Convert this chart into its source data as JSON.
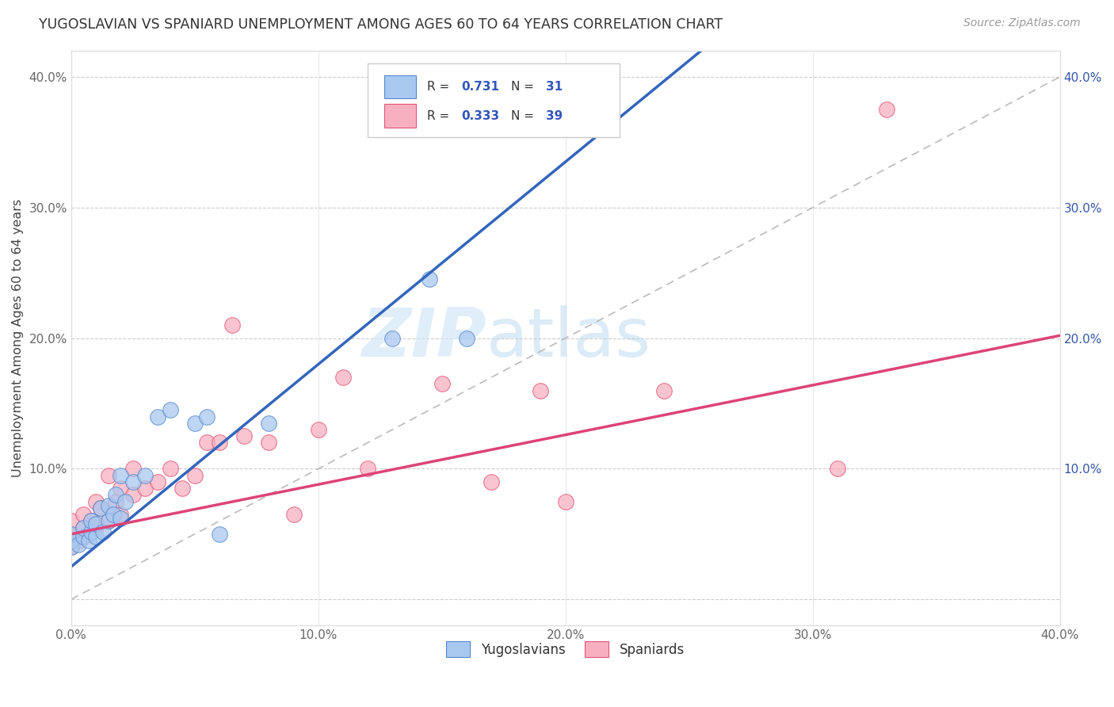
{
  "title": "YUGOSLAVIAN VS SPANIARD UNEMPLOYMENT AMONG AGES 60 TO 64 YEARS CORRELATION CHART",
  "source": "Source: ZipAtlas.com",
  "ylabel": "Unemployment Among Ages 60 to 64 years",
  "xlim": [
    0.0,
    0.4
  ],
  "ylim": [
    -0.02,
    0.42
  ],
  "x_ticks": [
    0.0,
    0.1,
    0.2,
    0.3,
    0.4
  ],
  "x_tick_labels": [
    "0.0%",
    "10.0%",
    "20.0%",
    "30.0%",
    "40.0%"
  ],
  "y_ticks": [
    0.0,
    0.1,
    0.2,
    0.3,
    0.4
  ],
  "y_tick_labels": [
    "",
    "10.0%",
    "20.0%",
    "30.0%",
    "40.0%"
  ],
  "legend_labels": [
    "Yugoslavians",
    "Spaniards"
  ],
  "blue_scatter_color": "#a8c8f0",
  "blue_edge_color": "#5588cc",
  "pink_scatter_color": "#f8b0c0",
  "pink_edge_color": "#e05575",
  "blue_line_color": "#3366bb",
  "pink_line_color": "#dd4477",
  "diag_color": "#bbbbbb",
  "background_color": "#ffffff",
  "watermark_zip": "ZIP",
  "watermark_atlas": "atlas",
  "R_blue": 0.731,
  "N_blue": 31,
  "R_pink": 0.333,
  "N_pink": 39,
  "yug_x": [
    0.0,
    0.0,
    0.0,
    0.003,
    0.005,
    0.005,
    0.007,
    0.008,
    0.008,
    0.01,
    0.01,
    0.012,
    0.013,
    0.015,
    0.015,
    0.017,
    0.018,
    0.02,
    0.02,
    0.022,
    0.025,
    0.03,
    0.035,
    0.04,
    0.05,
    0.055,
    0.06,
    0.08,
    0.13,
    0.145,
    0.16
  ],
  "yug_y": [
    0.04,
    0.045,
    0.05,
    0.042,
    0.048,
    0.055,
    0.045,
    0.052,
    0.06,
    0.048,
    0.058,
    0.07,
    0.052,
    0.06,
    0.072,
    0.065,
    0.08,
    0.062,
    0.095,
    0.075,
    0.09,
    0.095,
    0.14,
    0.145,
    0.135,
    0.14,
    0.05,
    0.135,
    0.2,
    0.245,
    0.2
  ],
  "spa_x": [
    0.0,
    0.0,
    0.0,
    0.003,
    0.005,
    0.005,
    0.007,
    0.008,
    0.01,
    0.01,
    0.012,
    0.015,
    0.015,
    0.018,
    0.02,
    0.02,
    0.025,
    0.025,
    0.03,
    0.035,
    0.04,
    0.045,
    0.05,
    0.055,
    0.06,
    0.065,
    0.07,
    0.08,
    0.09,
    0.1,
    0.11,
    0.12,
    0.15,
    0.17,
    0.19,
    0.2,
    0.24,
    0.31,
    0.33
  ],
  "spa_y": [
    0.04,
    0.05,
    0.06,
    0.045,
    0.055,
    0.065,
    0.05,
    0.06,
    0.055,
    0.075,
    0.07,
    0.06,
    0.095,
    0.075,
    0.065,
    0.085,
    0.08,
    0.1,
    0.085,
    0.09,
    0.1,
    0.085,
    0.095,
    0.12,
    0.12,
    0.21,
    0.125,
    0.12,
    0.065,
    0.13,
    0.17,
    0.1,
    0.165,
    0.09,
    0.16,
    0.075,
    0.16,
    0.1,
    0.375
  ]
}
